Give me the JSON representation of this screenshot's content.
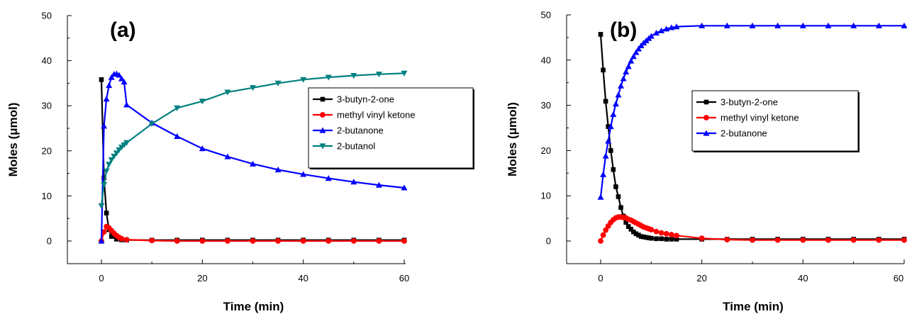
{
  "chart_data": [
    {
      "type": "line",
      "panel_label": "(a)",
      "xlabel": "Time (min)",
      "ylabel": "Moles (μmol)",
      "xlim": [
        -5,
        60
      ],
      "ylim": [
        -5,
        50
      ],
      "xticks": [
        0,
        20,
        40,
        60
      ],
      "yticks": [
        0,
        10,
        20,
        30,
        40,
        50
      ],
      "grid": false,
      "legend_position": "right",
      "series": [
        {
          "name": "3-butyn-2-one",
          "color": "#000000",
          "marker": "square",
          "x": [
            0,
            0.5,
            1,
            1.5,
            2,
            3,
            4,
            5,
            10,
            15,
            20,
            25,
            30,
            35,
            40,
            45,
            50,
            55,
            60
          ],
          "y": [
            35.8,
            14,
            6.2,
            2.5,
            1.0,
            0.4,
            0.25,
            0.2,
            0.2,
            0.2,
            0.2,
            0.2,
            0.2,
            0.2,
            0.2,
            0.2,
            0.2,
            0.2,
            0.2
          ]
        },
        {
          "name": "methyl vinyl ketone",
          "color": "#ff0000",
          "marker": "circle",
          "x": [
            0,
            0.5,
            1,
            1.5,
            2,
            2.5,
            3,
            3.5,
            4,
            5,
            10,
            15,
            20,
            25,
            30,
            35,
            40,
            45,
            50,
            55,
            60
          ],
          "y": [
            0,
            2.0,
            3.2,
            2.9,
            2.3,
            1.7,
            1.2,
            0.8,
            0.5,
            0.3,
            0.1,
            0,
            0,
            0,
            0,
            0,
            0,
            0,
            0,
            0,
            0
          ]
        },
        {
          "name": "2-butanone",
          "color": "#0000ff",
          "marker": "triangle-up",
          "x": [
            0,
            0.5,
            1,
            1.5,
            2,
            2.5,
            3,
            3.5,
            4,
            4.5,
            5,
            10,
            15,
            20,
            25,
            30,
            35,
            40,
            45,
            50,
            55,
            60
          ],
          "y": [
            0,
            25.5,
            31.5,
            34.5,
            36.3,
            37.0,
            37.1,
            36.8,
            36.0,
            35.3,
            30.2,
            26.2,
            23.2,
            20.5,
            18.7,
            17.1,
            15.8,
            14.8,
            13.9,
            13.1,
            12.4,
            11.8
          ]
        },
        {
          "name": "2-butanol",
          "color": "#008080",
          "marker": "triangle-down",
          "x": [
            0,
            0.5,
            1,
            1.5,
            2,
            2.5,
            3,
            3.5,
            4,
            4.5,
            5,
            10,
            15,
            20,
            25,
            30,
            35,
            40,
            45,
            50,
            55,
            60
          ],
          "y": [
            7.8,
            12.5,
            15.5,
            17.0,
            18.0,
            18.8,
            19.5,
            20.2,
            20.8,
            21.3,
            21.8,
            26.0,
            29.5,
            31.0,
            33.0,
            34.0,
            35.0,
            35.8,
            36.3,
            36.7,
            37.0,
            37.2
          ]
        }
      ]
    },
    {
      "type": "line",
      "panel_label": "(b)",
      "xlabel": "Time (min)",
      "ylabel": "Moles (μmol)",
      "xlim": [
        -5,
        60
      ],
      "ylim": [
        -5,
        50
      ],
      "xticks": [
        0,
        20,
        40,
        60
      ],
      "yticks": [
        0,
        10,
        20,
        30,
        40,
        50
      ],
      "grid": false,
      "legend_position": "right",
      "series": [
        {
          "name": "3-butyn-2-one",
          "color": "#000000",
          "marker": "square",
          "x": [
            0,
            0.5,
            1,
            1.5,
            2,
            2.5,
            3,
            3.5,
            4,
            4.5,
            5,
            5.5,
            6,
            6.5,
            7,
            7.5,
            8,
            8.5,
            9,
            9.5,
            10,
            11,
            12,
            13,
            14,
            15,
            20,
            25,
            30,
            35,
            40,
            45,
            50,
            55,
            60
          ],
          "y": [
            45.7,
            37.8,
            30.9,
            25.3,
            20.0,
            15.8,
            12.0,
            9.8,
            7.4,
            5.5,
            4.1,
            3.2,
            2.6,
            2.0,
            1.6,
            1.3,
            1.0,
            0.9,
            0.8,
            0.7,
            0.6,
            0.5,
            0.5,
            0.4,
            0.4,
            0.4,
            0.4,
            0.4,
            0.4,
            0.4,
            0.4,
            0.4,
            0.4,
            0.4,
            0.4
          ]
        },
        {
          "name": "methyl vinyl ketone",
          "color": "#ff0000",
          "marker": "circle",
          "x": [
            0,
            0.5,
            1,
            1.5,
            2,
            2.5,
            3,
            3.5,
            4,
            4.5,
            5,
            5.5,
            6,
            6.5,
            7,
            7.5,
            8,
            8.5,
            9,
            9.5,
            10,
            11,
            12,
            13,
            14,
            15,
            20,
            25,
            30,
            35,
            40,
            45,
            50,
            55,
            60
          ],
          "y": [
            0,
            1.3,
            2.4,
            3.3,
            4.1,
            4.7,
            5.1,
            5.3,
            5.3,
            5.2,
            5.1,
            4.8,
            4.6,
            4.3,
            4.0,
            3.7,
            3.4,
            3.1,
            2.9,
            2.7,
            2.5,
            2.1,
            1.8,
            1.6,
            1.4,
            1.2,
            0.6,
            0.3,
            0.2,
            0.2,
            0.2,
            0.2,
            0.2,
            0.2,
            0.2
          ]
        },
        {
          "name": "2-butanone",
          "color": "#0000ff",
          "marker": "triangle-up",
          "x": [
            0,
            0.5,
            1,
            1.5,
            2,
            2.5,
            3,
            3.5,
            4,
            4.5,
            5,
            5.5,
            6,
            6.5,
            7,
            7.5,
            8,
            8.5,
            9,
            9.5,
            10,
            11,
            12,
            13,
            14,
            15,
            20,
            25,
            30,
            35,
            40,
            45,
            50,
            55,
            60
          ],
          "y": [
            9.7,
            14.7,
            18.8,
            22.1,
            25.3,
            28.0,
            30.3,
            32.3,
            34.3,
            35.9,
            37.4,
            38.6,
            39.8,
            40.8,
            41.7,
            42.5,
            43.2,
            43.8,
            44.3,
            44.8,
            45.3,
            46.0,
            46.5,
            46.9,
            47.2,
            47.4,
            47.6,
            47.6,
            47.6,
            47.6,
            47.6,
            47.6,
            47.6,
            47.6,
            47.6
          ]
        }
      ]
    }
  ]
}
